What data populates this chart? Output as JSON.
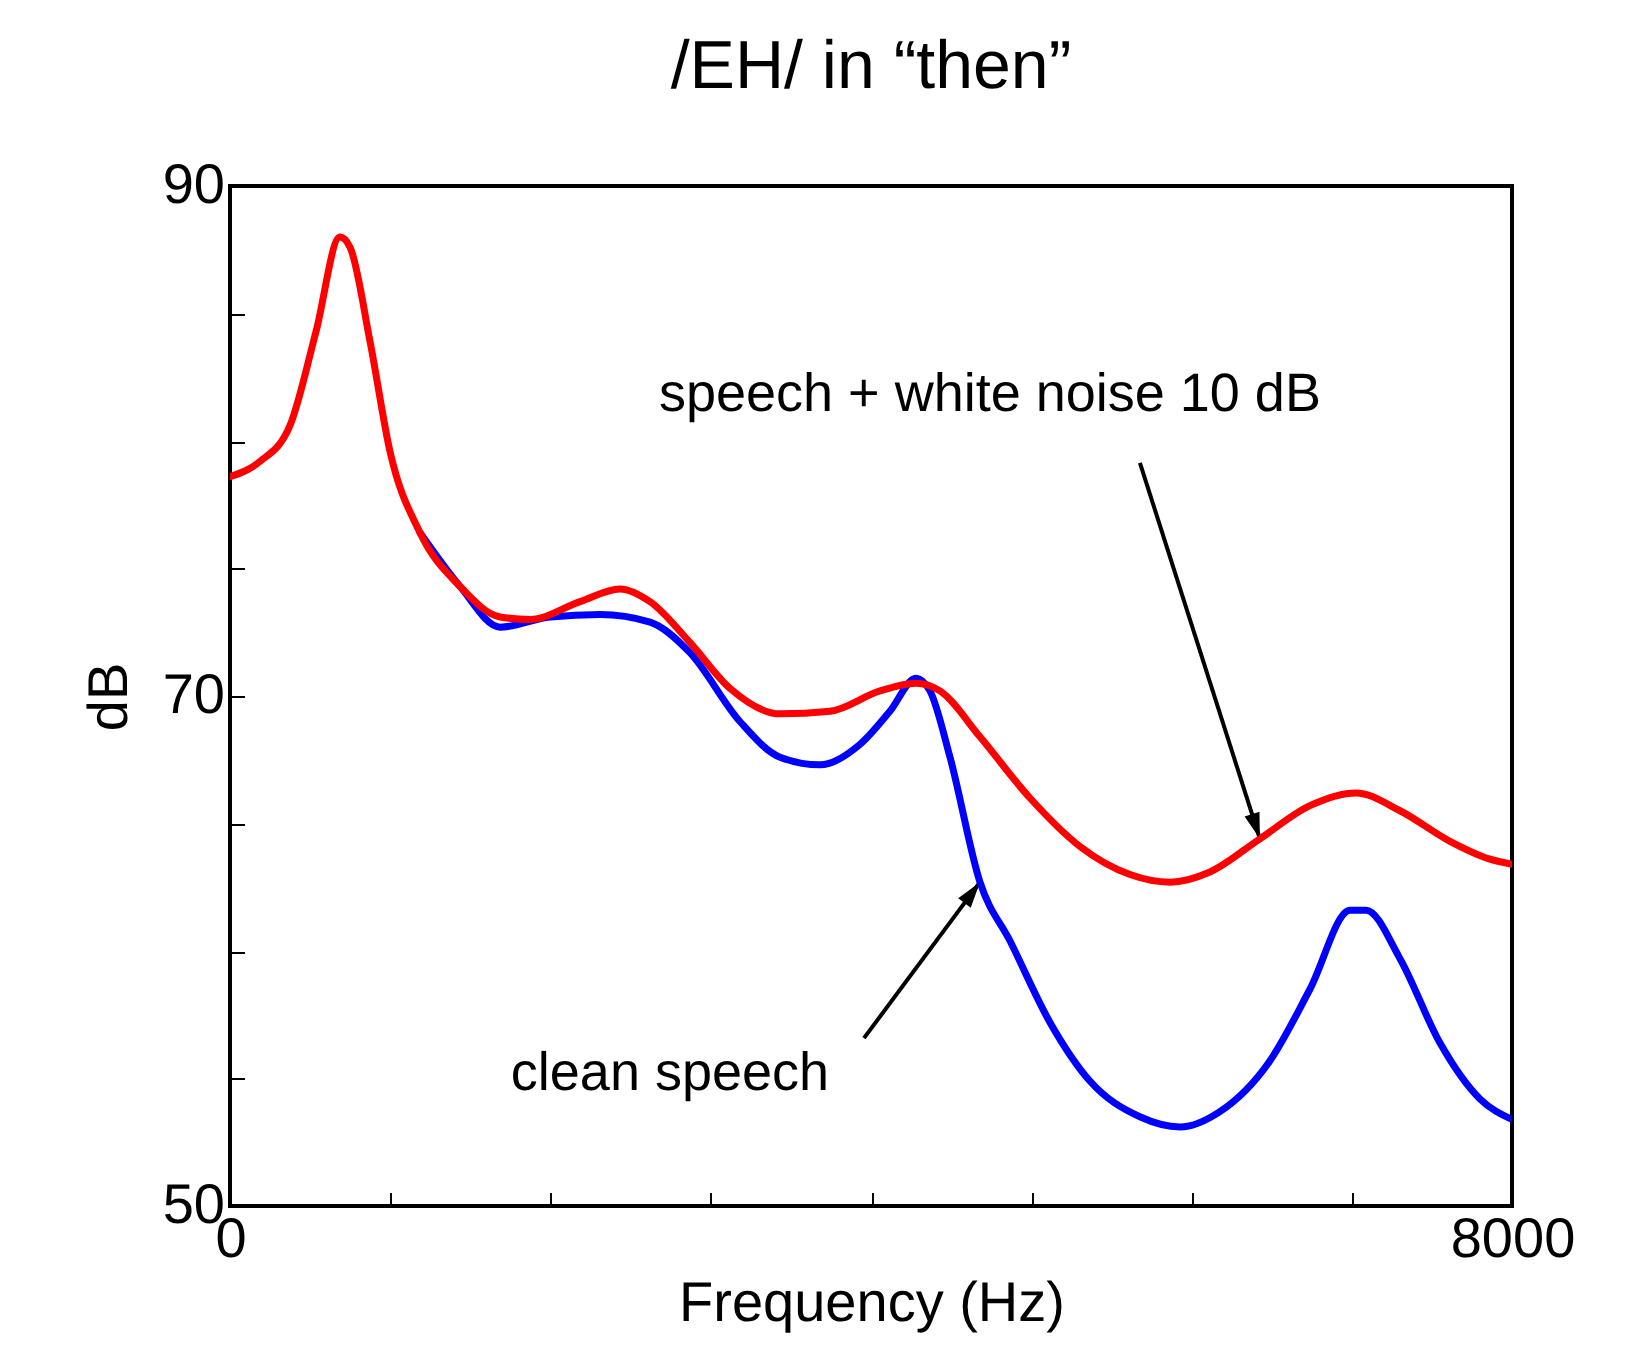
{
  "chart_data": {
    "type": "line",
    "title": "/EH/ in “then”",
    "xlabel": "Frequency (Hz)",
    "ylabel": "dB",
    "xlim": [
      0,
      8000
    ],
    "ylim": [
      50,
      90
    ],
    "xticks": [
      0,
      {
        "value": 1000,
        "label": null
      },
      {
        "value": 2000,
        "label": null
      },
      {
        "value": 3000,
        "label": null
      },
      {
        "value": 4000,
        "label": null
      },
      {
        "value": 5000,
        "label": null
      },
      {
        "value": 6000,
        "label": null
      },
      {
        "value": 7000,
        "label": null
      },
      8000
    ],
    "yticks": [
      50,
      {
        "value": 55,
        "label": null
      },
      {
        "value": 60,
        "label": null
      },
      {
        "value": 65,
        "label": null
      },
      70,
      {
        "value": 75,
        "label": null
      },
      {
        "value": 80,
        "label": null
      },
      {
        "value": 85,
        "label": null
      },
      90
    ],
    "grid": false,
    "legend": false,
    "marker": "none",
    "line_style": "solid",
    "series": [
      {
        "color": "#0000ff",
        "x": [
          1186,
          1435,
          1685,
          1997,
          2309,
          2621,
          2870,
          3182,
          3432,
          3682,
          3931,
          4118,
          4281,
          4368,
          4493,
          4680,
          4867,
          5117,
          5366,
          5678,
          5928,
          6177,
          6490,
          6739,
          6989,
          7089,
          7301,
          7550,
          7800,
          8000
        ],
        "values": [
          76.4,
          74.3,
          72.7,
          73.1,
          73.2,
          72.9,
          71.7,
          69.0,
          67.6,
          67.3,
          68.1,
          69.4,
          70.7,
          70.2,
          67.6,
          62.7,
          60.4,
          57.2,
          54.9,
          53.5,
          53.1,
          53.7,
          55.7,
          58.5,
          61.6,
          61.6,
          59.7,
          56.4,
          54.2,
          53.4
        ]
      },
      {
        "color": "#ff0000",
        "x": [
          0,
          187,
          374,
          537,
          686,
          749,
          874,
          998,
          1186,
          1435,
          1685,
          1872,
          2184,
          2434,
          2621,
          2870,
          3120,
          3432,
          3744,
          4056,
          4281,
          4430,
          4680,
          4992,
          5304,
          5616,
          5866,
          6115,
          6427,
          6739,
          7026,
          7301,
          7613,
          7862,
          8000
        ],
        "values": [
          78.6,
          79.2,
          80.6,
          84.3,
          88.0,
          87.6,
          83.9,
          79.6,
          76.4,
          74.3,
          73.1,
          73.0,
          73.7,
          74.2,
          73.7,
          72.1,
          70.3,
          69.3,
          69.4,
          70.2,
          70.5,
          70.2,
          68.4,
          66.0,
          64.1,
          63.0,
          62.7,
          63.1,
          64.4,
          65.7,
          66.2,
          65.5,
          64.3,
          63.6,
          63.4
        ]
      }
    ],
    "annotations": [
      {
        "text": "speech + white noise 10 dB",
        "x": 6427,
        "y": 64.4
      },
      {
        "text": "clean speech",
        "x": 4680,
        "y": 62.7
      }
    ]
  }
}
